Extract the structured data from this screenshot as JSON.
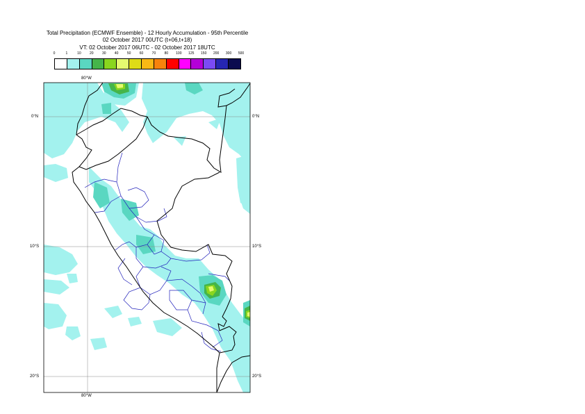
{
  "title": {
    "line1": "Total Precipitation (ECMWF Ensemble) - 12 Hourly Accumulation - 95th Percentile",
    "line2": "02 October 2017 00UTC (t+06,t+18)",
    "line3": "VT: 02 October 2017 06UTC - 02 October 2017 18UTC"
  },
  "legend": {
    "labels": [
      "0",
      "1",
      "10",
      "20",
      "30",
      "40",
      "50",
      "60",
      "70",
      "80",
      "100",
      "125",
      "150",
      "200",
      "300",
      "500"
    ],
    "colors": [
      "#ffffff",
      "#a3f2ee",
      "#5ad7c1",
      "#45b54a",
      "#8ad61e",
      "#e6fa70",
      "#dedc16",
      "#f9b815",
      "#f7820c",
      "#ff0000",
      "#ff00ff",
      "#b400d8",
      "#7b4bf5",
      "#2626b3",
      "#0c0c4f"
    ]
  },
  "map": {
    "colors": {
      "light": "#a3f2ee",
      "teal": "#5ad7c1",
      "green": "#45b54a",
      "lime": "#8ad61e",
      "yellow": "#e6fa70",
      "gold": "#dedc16",
      "country": "#000000",
      "admin": "#2222bb",
      "grid": "#888888"
    },
    "lon_labels": {
      "top": "80°W",
      "bottom": "80°W"
    },
    "lat_labels": [
      {
        "left": "0°N",
        "right": "0°N"
      },
      {
        "left": "10°S",
        "right": "10°S"
      },
      {
        "left": "20°S",
        "right": "20°S"
      }
    ]
  }
}
